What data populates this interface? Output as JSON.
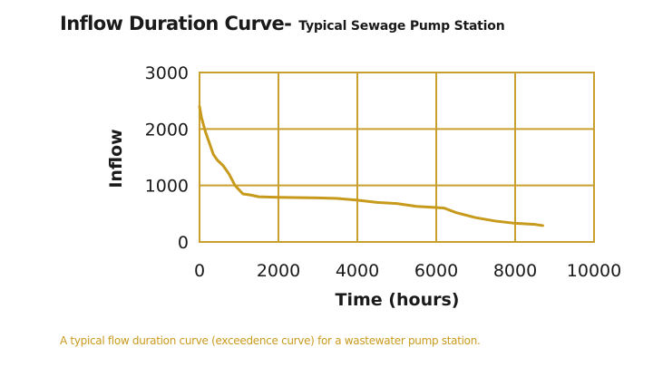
{
  "chart_data": {
    "type": "line",
    "title": "Inflow Duration Curve-",
    "subtitle": "Typical Sewage Pump Station",
    "xlabel": "Time (hours)",
    "ylabel": "Inflow",
    "xlim": [
      0,
      10000
    ],
    "ylim": [
      0,
      3000
    ],
    "x_ticks": [
      "0",
      "2000",
      "4000",
      "6000",
      "8000",
      "10000"
    ],
    "y_ticks": [
      "3000",
      "2000",
      "1000",
      "0"
    ],
    "grid": true,
    "series": [
      {
        "color": "#c79a1c",
        "points": [
          [
            0,
            2400
          ],
          [
            50,
            2200
          ],
          [
            150,
            1950
          ],
          [
            250,
            1750
          ],
          [
            350,
            1550
          ],
          [
            450,
            1450
          ],
          [
            600,
            1350
          ],
          [
            750,
            1200
          ],
          [
            900,
            1000
          ],
          [
            1100,
            850
          ],
          [
            1300,
            830
          ],
          [
            1500,
            800
          ],
          [
            2000,
            790
          ],
          [
            3000,
            780
          ],
          [
            3500,
            770
          ],
          [
            4000,
            740
          ],
          [
            4500,
            700
          ],
          [
            5000,
            680
          ],
          [
            5500,
            630
          ],
          [
            6000,
            610
          ],
          [
            6200,
            600
          ],
          [
            6500,
            520
          ],
          [
            7000,
            430
          ],
          [
            7500,
            370
          ],
          [
            8000,
            330
          ],
          [
            8500,
            310
          ],
          [
            8700,
            290
          ]
        ]
      }
    ],
    "caption": "A typical flow duration curve (exceedence curve) for a wastewater pump station."
  },
  "colors": {
    "plot_border": "#c9a02e",
    "grid": "#c9a02e",
    "line": "#c79a1c",
    "caption": "#c99a1e",
    "text": "#1a1a1a"
  }
}
